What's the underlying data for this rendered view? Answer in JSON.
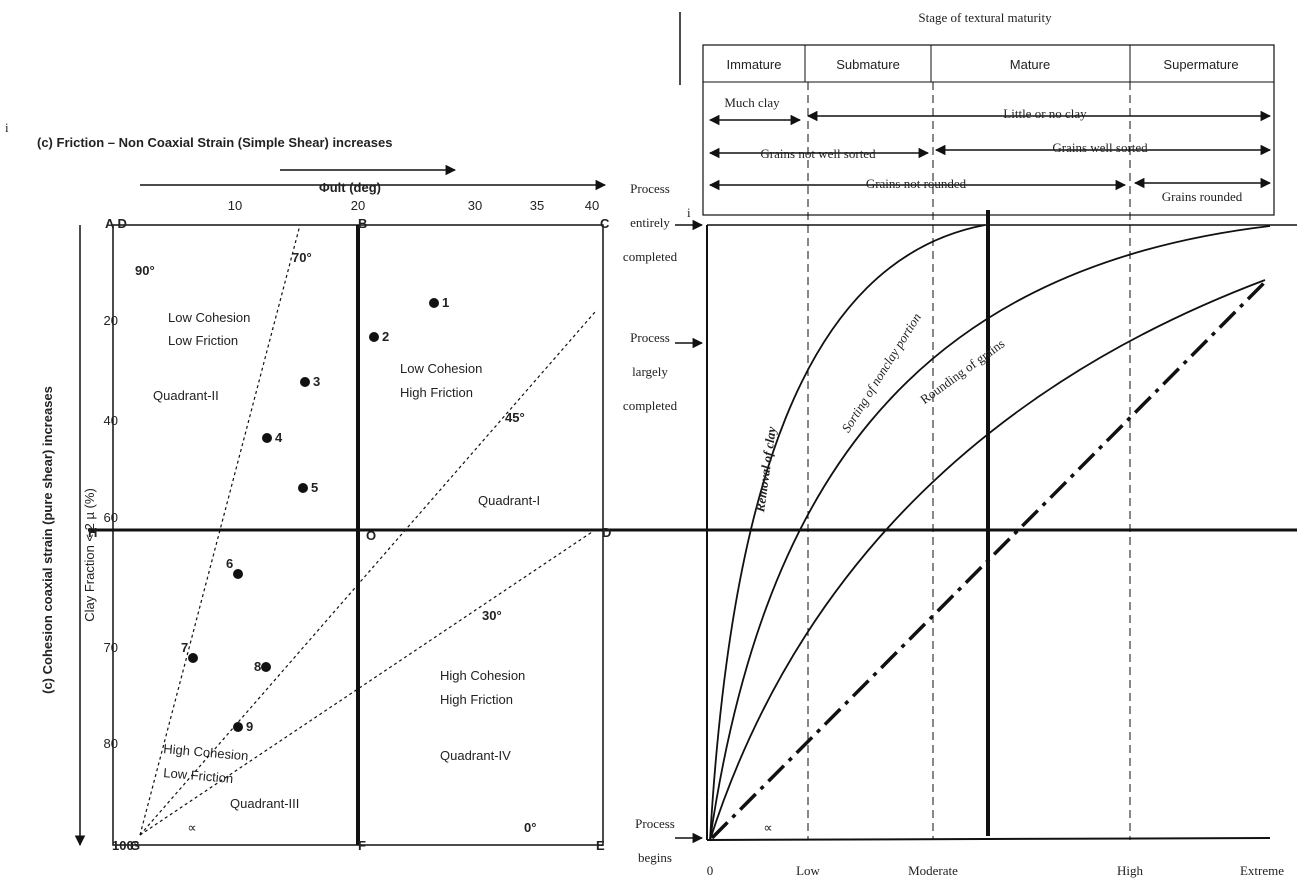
{
  "left_panel": {
    "title": "(c) Friction – Non Coaxial Strain (Simple Shear) increases",
    "side_title": "(c) Cohesion coaxial strain (pure shear) increases",
    "x_axis_label": "Φult (deg)",
    "x_ticks": [
      "10",
      "20",
      "30",
      "35",
      "40"
    ],
    "y_axis_label": "Clay Fraction < 2 µ (%)",
    "y_ticks": [
      "20",
      "40",
      "60",
      "70",
      "80"
    ],
    "corners": [
      "A D",
      "B",
      "C",
      "H",
      "O",
      "D",
      "G",
      "F",
      "E"
    ],
    "angles": [
      "90°",
      "70°",
      "45°",
      "30°",
      "0°",
      "100°"
    ],
    "points": [
      "1",
      "2",
      "3",
      "4",
      "5",
      "6",
      "7",
      "8",
      "9"
    ],
    "regions": [
      "Low Cohesion",
      "Low Friction",
      "Low Cohesion",
      "High Friction",
      "High Cohesion",
      "High Friction",
      "High Cohesion",
      "Low Friction"
    ],
    "quadrants": [
      "Quadrant-I",
      "Quadrant-II",
      "Quadrant-III",
      "Quadrant-IV"
    ],
    "alpha": "∝"
  },
  "right_panel": {
    "title": "Stage of textural maturity",
    "stages": [
      "Immature",
      "Submature",
      "Mature",
      "Supermature"
    ],
    "rows": [
      "Much clay",
      "Little or no clay",
      "Grains not well sorted",
      "Grains well sorted",
      "Grains not rounded",
      "Grains rounded"
    ],
    "process_completed": [
      "Process",
      "entirely",
      "completed"
    ],
    "process_largely": [
      "Process",
      "largely",
      "completed"
    ],
    "process_begins": [
      "Process",
      "begins"
    ],
    "curves": [
      "Removal of clay",
      "Sorting of nonclay portion",
      "Rounding of grains"
    ],
    "x_labels": [
      "0",
      "Low",
      "Moderate",
      "High",
      "Extreme"
    ],
    "alpha": "∝"
  },
  "markers": [
    "i",
    "i"
  ]
}
